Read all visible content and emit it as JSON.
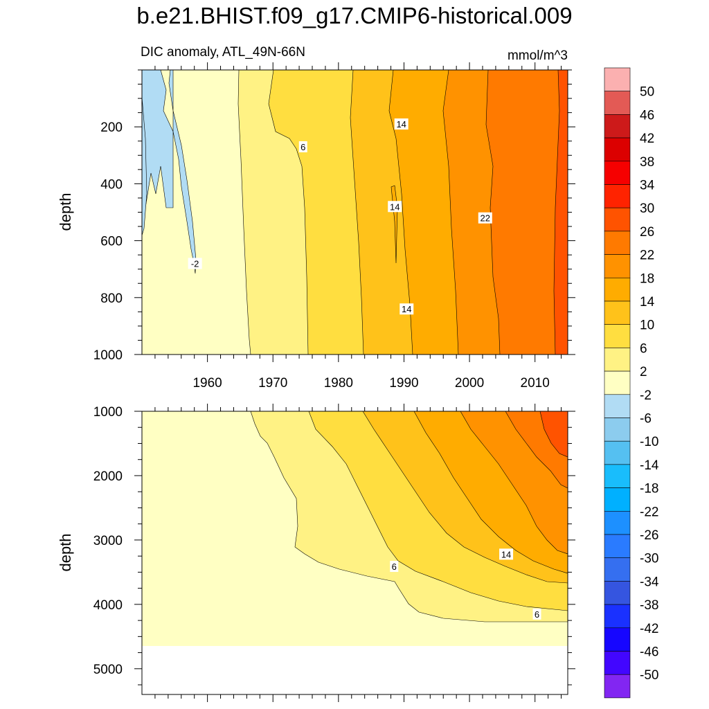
{
  "chart_data": {
    "type": "heatmap",
    "title": "b.e21.BHIST.f09_g17.CMIP6-historical.009",
    "subtitle": "DIC anomaly, ATL_49N-66N",
    "units": "mmol/m^3",
    "xlim": [
      1950,
      2015
    ],
    "x_ticks": [
      1960,
      1970,
      1980,
      1990,
      2000,
      2010
    ],
    "panels": [
      {
        "name": "upper",
        "ylabel": "depth",
        "ylim": [
          0,
          1000
        ],
        "y_ticks": [
          200,
          400,
          600,
          800,
          1000
        ],
        "contour_labels": [
          {
            "text": "-2",
            "x": 1958.1,
            "y": 680
          },
          {
            "text": "6",
            "x": 1974.6,
            "y": 270
          },
          {
            "text": "14",
            "x": 1989.6,
            "y": 190
          },
          {
            "text": "14",
            "x": 1988.6,
            "y": 480
          },
          {
            "text": "14",
            "x": 1990.4,
            "y": 840
          },
          {
            "text": "22",
            "x": 2002.4,
            "y": 520
          }
        ]
      },
      {
        "name": "lower",
        "ylabel": "depth",
        "ylim": [
          1000,
          5400
        ],
        "y_ticks": [
          1000,
          2000,
          3000,
          4000,
          5000
        ],
        "contour_labels": [
          {
            "text": "6",
            "x": 1988.5,
            "y": 3410
          },
          {
            "text": "14",
            "x": 2005.6,
            "y": 3220
          },
          {
            "text": "6",
            "x": 2010.3,
            "y": 4150
          }
        ]
      }
    ],
    "colorbar": {
      "levels": [
        "50",
        "46",
        "42",
        "38",
        "34",
        "30",
        "26",
        "22",
        "18",
        "14",
        "10",
        "6",
        "2",
        "-2",
        "-6",
        "-10",
        "-14",
        "-18",
        "-22",
        "-26",
        "-30",
        "-34",
        "-38",
        "-42",
        "-46",
        "-50"
      ],
      "colors": [
        "#fbb0b0",
        "#e35a55",
        "#cd1a1a",
        "#dc0000",
        "#f60000",
        "#ff2300",
        "#ff5300",
        "#ff7a00",
        "#ff9200",
        "#ffac00",
        "#ffc21a",
        "#ffde40",
        "#fff284",
        "#ffffc3",
        "#b1dcf4",
        "#8cccee",
        "#55c0f1",
        "#19bdfc",
        "#00b0ff",
        "#1d90ff",
        "#2a7bff",
        "#356ff0",
        "#3555e0",
        "#1a31ff",
        "#1606ff",
        "#4206ff",
        "#8226f2"
      ]
    }
  }
}
